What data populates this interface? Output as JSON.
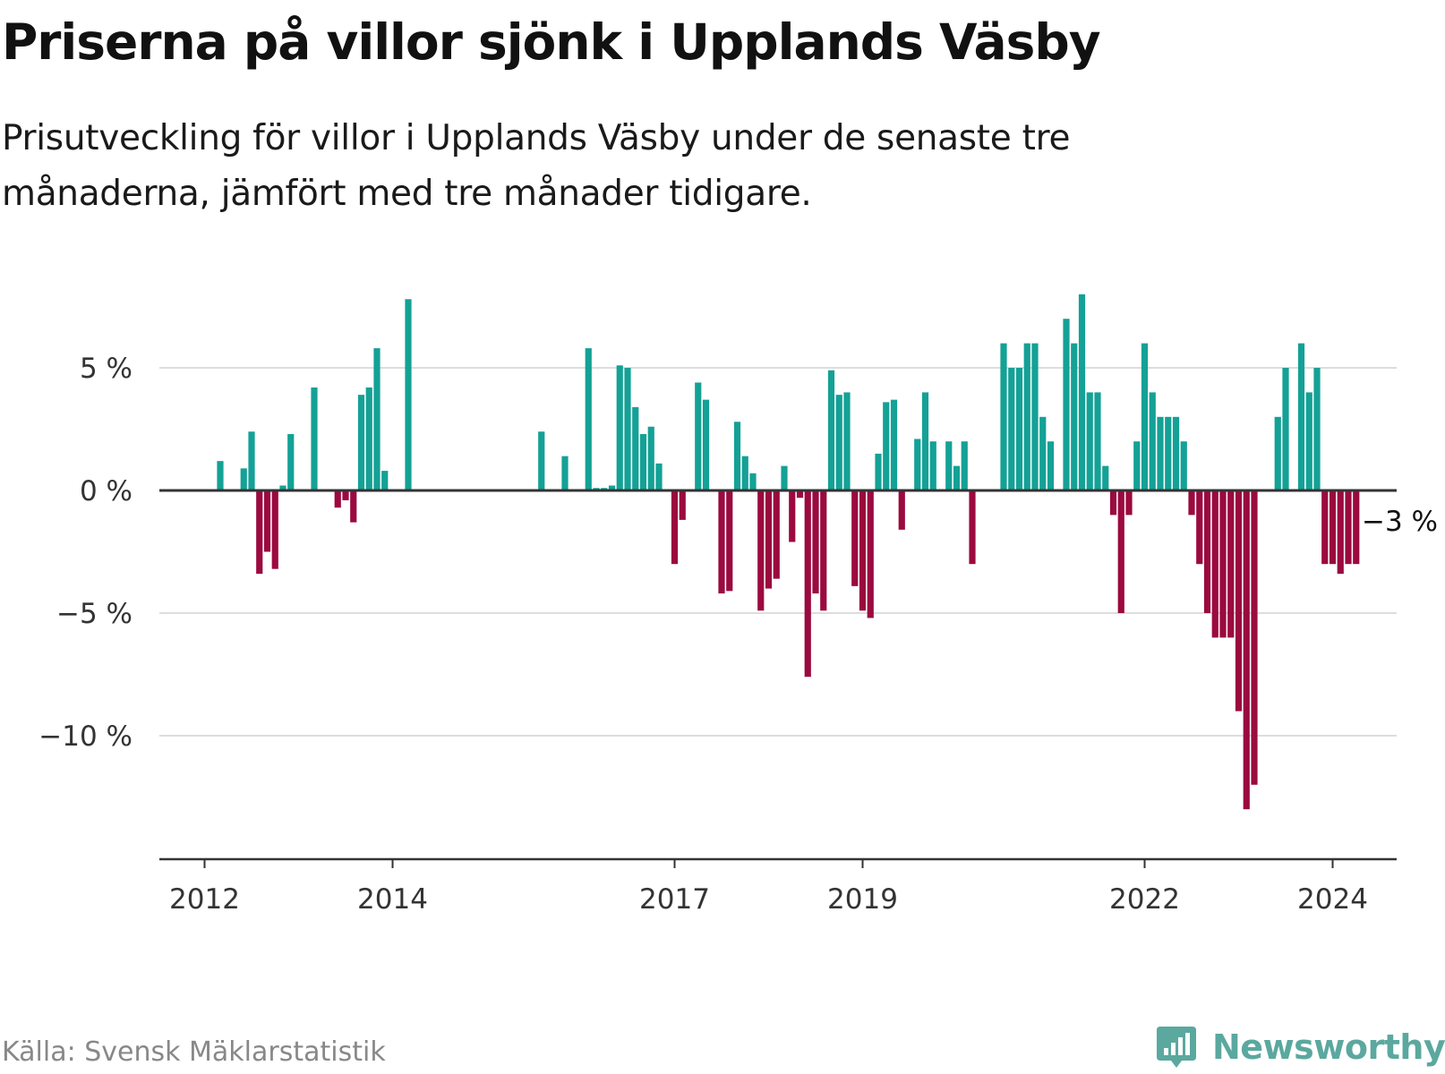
{
  "header": {
    "title": "Priserna på villor sjönk i Upplands Väsby",
    "subtitle": "Prisutveckling för villor i Upplands Väsby under de senaste tre månaderna, jämfört med tre månader tidigare."
  },
  "footer": {
    "source": "Källa: Svensk Mäklarstatistik",
    "brand": "Newsworthy",
    "brand_icon": "bar-chart-speech-icon"
  },
  "colors": {
    "positive": "#14a196",
    "negative": "#9b0a3f",
    "gridline": "#dddddd",
    "axis": "#333333",
    "brand": "#5ba89f"
  },
  "chart_data": {
    "type": "bar",
    "title": "Priserna på villor sjönk i Upplands Väsby",
    "xlabel": "",
    "ylabel": "",
    "unit": "%",
    "ylim": [
      -15,
      8.5
    ],
    "yticks": [
      5,
      0,
      -5,
      -10
    ],
    "ytick_labels": [
      "5 %",
      "0 %",
      "−5 %",
      "−10 %"
    ],
    "xticks": [
      {
        "label": "2012",
        "index": 0
      },
      {
        "label": "2014",
        "index": 24
      },
      {
        "label": "2017",
        "index": 60
      },
      {
        "label": "2019",
        "index": 84
      },
      {
        "label": "2022",
        "index": 120
      },
      {
        "label": "2024",
        "index": 144
      }
    ],
    "grid": true,
    "legend": "none",
    "start": "2012-01",
    "end": "2024-06",
    "values": [
      null,
      null,
      1.2,
      null,
      null,
      0.9,
      2.4,
      -3.4,
      -2.5,
      -3.2,
      0.2,
      2.3,
      null,
      null,
      4.2,
      null,
      null,
      -0.7,
      -0.4,
      -1.3,
      3.9,
      4.2,
      5.8,
      0.8,
      null,
      null,
      7.8,
      null,
      null,
      null,
      null,
      null,
      null,
      null,
      null,
      null,
      null,
      null,
      null,
      null,
      null,
      null,
      null,
      2.4,
      null,
      null,
      1.4,
      null,
      null,
      5.8,
      0.1,
      0.1,
      0.2,
      5.1,
      5.0,
      3.4,
      2.3,
      2.6,
      1.1,
      null,
      -3.0,
      -1.2,
      null,
      4.4,
      3.7,
      null,
      -4.2,
      -4.1,
      2.8,
      1.4,
      0.7,
      -4.9,
      -4.0,
      -3.6,
      1.0,
      -2.1,
      -0.3,
      -7.6,
      -4.2,
      -4.9,
      4.9,
      3.9,
      4.0,
      -3.9,
      -4.9,
      -5.2,
      1.5,
      3.6,
      3.7,
      -1.6,
      null,
      2.1,
      4.0,
      2.0,
      null,
      2.0,
      1.0,
      2.0,
      -3.0,
      null,
      null,
      null,
      6.0,
      5.0,
      5.0,
      6.0,
      6.0,
      3.0,
      2.0,
      null,
      7.0,
      6.0,
      8.0,
      4.0,
      4.0,
      1.0,
      -1.0,
      -5.0,
      -1.0,
      2.0,
      6.0,
      4.0,
      3.0,
      3.0,
      3.0,
      2.0,
      -1.0,
      -3.0,
      -5.0,
      -6.0,
      -6.0,
      -6.0,
      -9.0,
      -13.0,
      -12.0,
      null,
      null,
      3.0,
      5.0,
      null,
      6.0,
      4.0,
      5.0,
      -3.0,
      -3.0,
      -3.4,
      -3.0,
      -3.0,
      null
    ],
    "annotations": [
      {
        "text": "−3 %",
        "index": 148
      }
    ]
  }
}
